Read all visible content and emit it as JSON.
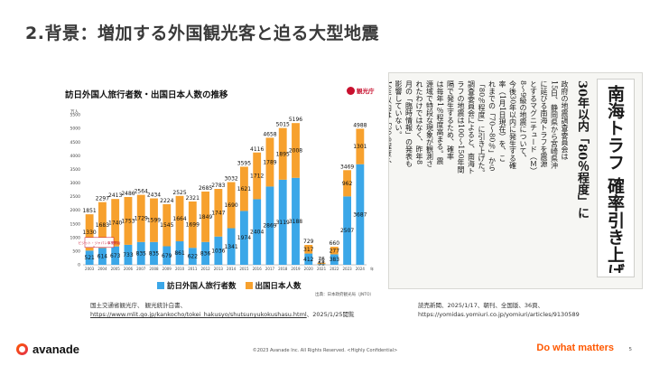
{
  "slide": {
    "title": "2.背景：増加する外国観光客と迫る大型地震"
  },
  "chart_panel": {
    "logo_text": "観光庁",
    "source_note": "出典：日本政府観光局（JNTO）"
  },
  "chart_data": {
    "type": "bar",
    "title": "訪日外国人旅行者数・出国日本人数の推移",
    "y_unit": "万人",
    "x_unit": "年",
    "ylim": [
      0,
      5500
    ],
    "y_ticks": [
      0,
      500,
      1000,
      1500,
      2000,
      2500,
      3000,
      3500,
      4000,
      4500,
      5000,
      5500
    ],
    "categories": [
      "2003",
      "2004",
      "2005",
      "2006",
      "2007",
      "2008",
      "2009",
      "2010",
      "2011",
      "2012",
      "2013",
      "2014",
      "2015",
      "2016",
      "2017",
      "2018",
      "2019",
      "2020",
      "2021",
      "2022",
      "2023",
      "2024"
    ],
    "series": [
      {
        "name": "訪日外国人旅行者数",
        "color": "#3ba7e8",
        "values": [
          521,
          614,
          673,
          733,
          835,
          835,
          679,
          861,
          622,
          836,
          1036,
          1341,
          1974,
          2404,
          2869,
          3119,
          3188,
          412,
          25,
          383,
          2507,
          3687
        ]
      },
      {
        "name": "出国日本人数",
        "color": "#f7a12e",
        "values": [
          1330,
          1683,
          1740,
          1753,
          1729,
          1599,
          1545,
          1664,
          1699,
          1849,
          1747,
          1690,
          1621,
          1712,
          1789,
          1895,
          2008,
          317,
          51,
          277,
          962,
          1301
        ]
      }
    ],
    "totals": [
      1851,
      2297,
      2413,
      2486,
      2564,
      2434,
      2224,
      2525,
      2321,
      2685,
      2783,
      3032,
      3595,
      4116,
      4658,
      5015,
      5196,
      729,
      76,
      660,
      3469,
      4988
    ],
    "stacked": true,
    "legend_position": "bottom",
    "annotation": "ビジット・ジャパン事業開始",
    "grid": false
  },
  "legend": {
    "inbound_label": "訪日外国人旅行者数",
    "outbound_label": "出国日本人数"
  },
  "sources": {
    "left_line1": "国土交通省観光庁、 観光統計白書、",
    "left_url": "https://www.mlit.go.jp/kankocho/tokei_hakusyo/shutsunyukokushasu.html",
    "left_suffix": "、2025/1/25閲覧",
    "right_line1": "読売新聞、2025/1/17、朝刊、全国版、36頁、",
    "right_line2": "https://yomidas.yomiuri.co.jp/yomiuri/articles/9130589"
  },
  "clipping": {
    "headline": "南海トラフ 確率引き上げ",
    "subheadline": "30年以内「80％程度」に",
    "columns": [
      "政府の地震調査委員会は",
      "15日、静岡県から宮崎県沖",
      "に延びる南海トラフを震源",
      "とするマグニチュード（Ｍ）",
      "8〜9級の地震について、",
      "今後30年以内に発生する確",
      "率（1月1日現在）を、こ",
      "れまでの「70〜80％」から",
      "「80％程度」に引き上げた。",
      "調査委員会によると、南海ト",
      "ラフの地震は100〜150年間",
      "隔で発生するため、確率",
      "は毎年1％程度高まる。震",
      "源域で特段な現象が観測さ",
      "れたわけではなく、昨年8",
      "月の「臨時情報」の発表も",
      "影響していない。",
      "10年以内は「30％程度」、",
      "20年以内は「60％程度」で",
      "評価を前年のまま据え置い",
      "た。東京大学名誉教授の平",
      "田直・委員長は「元々、",
      "確率は非常に高い。低くな",
      "ることはないので備えても",
      "らいたい」と話している。"
    ]
  },
  "footer": {
    "brand": "avanade",
    "copyright": "©2023 Avanade Inc. All Rights Reserved. <Highly Confidential>",
    "tagline": "Do what matters",
    "page_number": "5"
  }
}
